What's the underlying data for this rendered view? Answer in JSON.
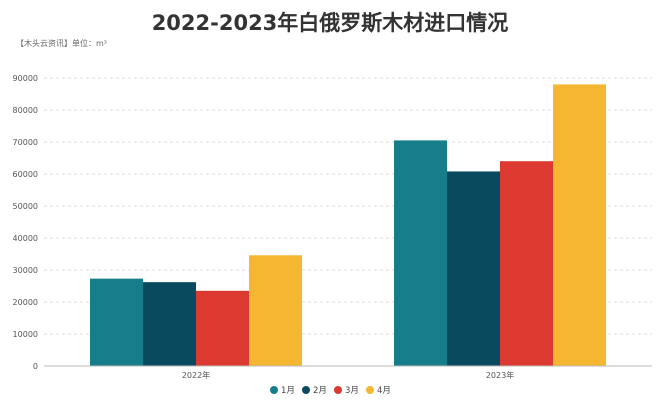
{
  "chart_data": {
    "type": "bar",
    "title": "2022-2023年白俄罗斯木材进口情况",
    "subtitle": "【木头云资讯】单位：m³",
    "categories": [
      "2022年",
      "2023年"
    ],
    "series": [
      {
        "name": "1月",
        "color": "#167d8a",
        "values": [
          27300,
          70500
        ]
      },
      {
        "name": "2月",
        "color": "#0a4a5e",
        "values": [
          26200,
          60800
        ]
      },
      {
        "name": "3月",
        "color": "#dc3a31",
        "values": [
          23500,
          64000
        ]
      },
      {
        "name": "4月",
        "color": "#f5b731",
        "values": [
          34600,
          88000
        ]
      }
    ],
    "xlabel": "",
    "ylabel": "",
    "ylim": [
      0,
      90000
    ],
    "yticks": [
      0,
      10000,
      20000,
      30000,
      40000,
      50000,
      60000,
      70000,
      80000,
      90000
    ],
    "grid": true,
    "legend_position": "bottom-center"
  }
}
